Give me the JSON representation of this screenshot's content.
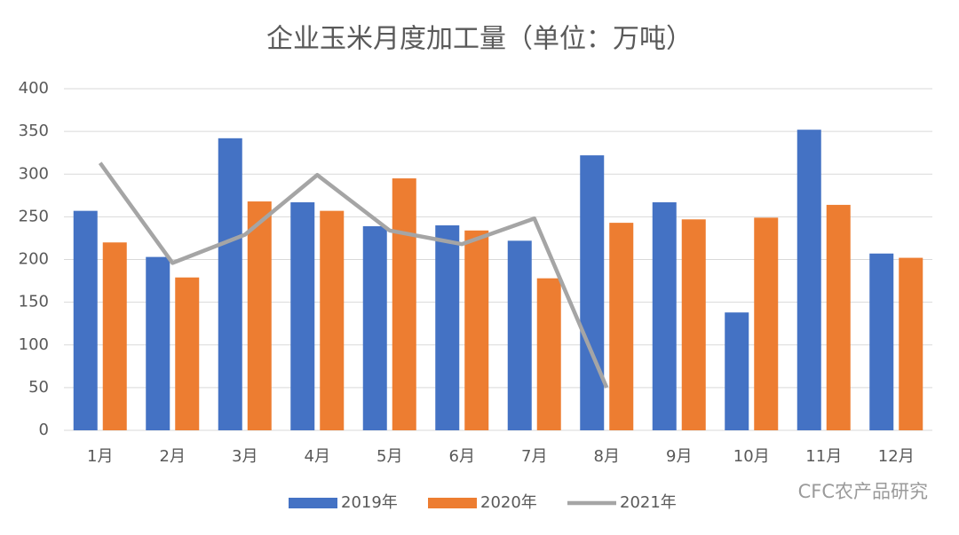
{
  "chart_data": {
    "type": "bar",
    "title": "企业玉米月度加工量（单位：万吨）",
    "categories": [
      "1月",
      "2月",
      "3月",
      "4月",
      "5月",
      "6月",
      "7月",
      "8月",
      "9月",
      "10月",
      "11月",
      "12月"
    ],
    "series": [
      {
        "name": "2019年",
        "color": "#4472c4",
        "type": "bar",
        "values": [
          257,
          203,
          342,
          267,
          239,
          240,
          222,
          322,
          267,
          138,
          352,
          207
        ]
      },
      {
        "name": "2020年",
        "color": "#ed7d31",
        "type": "bar",
        "values": [
          220,
          179,
          268,
          257,
          295,
          234,
          178,
          243,
          247,
          249,
          264,
          202
        ]
      },
      {
        "name": "2021年",
        "color": "#a5a5a5",
        "type": "line",
        "values": [
          313,
          196,
          229,
          299,
          234,
          218,
          248,
          50,
          null,
          null,
          null,
          null
        ]
      }
    ],
    "ylim": [
      0,
      400
    ],
    "yticks": [
      0,
      50,
      100,
      150,
      200,
      250,
      300,
      350,
      400
    ],
    "grid": true,
    "legend": "bottom",
    "watermark": "CFC农产品研究"
  }
}
